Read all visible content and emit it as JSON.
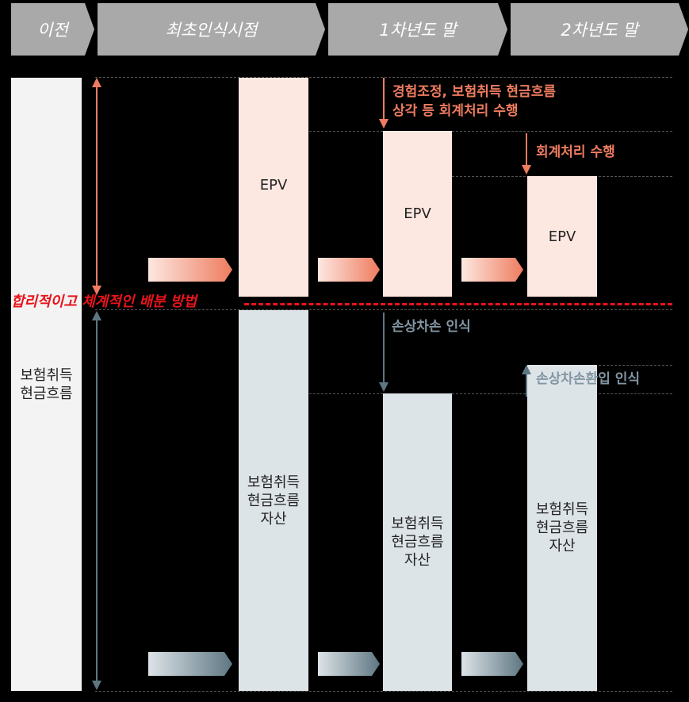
{
  "header": {
    "stages": [
      "이전",
      "최초인식시점",
      "1차년도 말",
      "2차년도 말"
    ]
  },
  "columns": {
    "before_label": "보험취득\n현금흐름",
    "epv_label": "EPV",
    "asset_label": "보험취득\n현금흐름\n자산"
  },
  "annotations": {
    "experience_adjustment": "경험조정, 보험취득 현금흐름\n상각 등 회계처리 수행",
    "accounting": "회계처리 수행",
    "allocation_method": "합리적이고 체계적인 배분 방법",
    "impairment": "손상차손 인식",
    "impairment_reversal": "손상차손환입 인식"
  },
  "colors": {
    "salmon": "#ee7c5f",
    "slate": "#5e7682",
    "red_dashed": "#e8141b",
    "epv_fill": "#fde8e1",
    "asset_fill": "#dde4e8"
  }
}
